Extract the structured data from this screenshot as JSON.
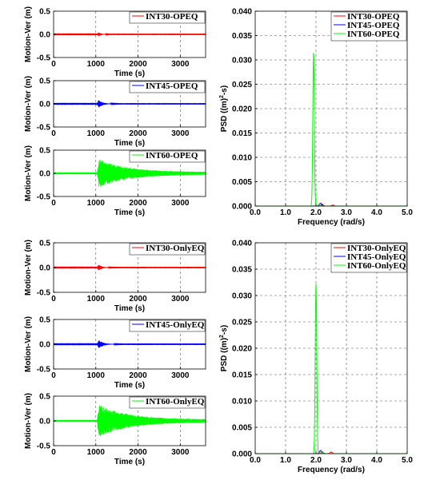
{
  "colors": {
    "int30": "#ff0000",
    "int45": "#0000ff",
    "int60": "#00ff00"
  },
  "chart_data": [
    {
      "id": "op30",
      "type": "line",
      "xlabel": "Time (s)",
      "ylabel": "Motion-Ver (m)",
      "xlim": [
        0,
        3600
      ],
      "ylim": [
        -0.5,
        0.5
      ],
      "xticks": [
        0,
        1000,
        2000,
        3000
      ],
      "yticks": [
        0.5,
        0,
        -0.5
      ],
      "grid": "dashed",
      "legend": "top-right",
      "series": [
        {
          "name": "INT30-OPEQ",
          "color": "#ff0000",
          "event_start": 1030,
          "peak": 0.07,
          "decay_end": 1300,
          "residual": 0.003
        }
      ]
    },
    {
      "id": "op45",
      "type": "line",
      "xlabel": "Time (s)",
      "ylabel": "Motion-Ver (m)",
      "xlim": [
        0,
        3600
      ],
      "ylim": [
        -0.5,
        0.5
      ],
      "xticks": [
        0,
        1000,
        2000,
        3000
      ],
      "yticks": [
        0.5,
        0,
        -0.5
      ],
      "grid": "dashed",
      "legend": "top-right",
      "series": [
        {
          "name": "INT45-OPEQ",
          "color": "#0000ff",
          "event_start": 1030,
          "peak": 0.12,
          "decay_end": 1400,
          "residual": 0.004
        }
      ]
    },
    {
      "id": "op60",
      "type": "line",
      "xlabel": "Time (s)",
      "ylabel": "Motion-Ver (m)",
      "xlim": [
        0,
        3600
      ],
      "ylim": [
        -0.5,
        0.5
      ],
      "xticks": [
        0,
        1000,
        2000,
        3000
      ],
      "yticks": [
        0.5,
        0,
        -0.5
      ],
      "grid": "dashed",
      "legend": "top-right",
      "series": [
        {
          "name": "INT60-OPEQ",
          "color": "#00ff00",
          "event_start": 1030,
          "peak": 0.28,
          "decay_end": 3600,
          "residual": 0.04
        }
      ]
    },
    {
      "id": "oppsd",
      "type": "line",
      "xlabel": "Frequency (rad/s)",
      "ylabel": "PSD ((m)^2-s)",
      "xlim": [
        0,
        5
      ],
      "ylim": [
        0,
        0.04
      ],
      "xticks": [
        0,
        1,
        2,
        3,
        4,
        5
      ],
      "yticks": [
        0.04,
        0.035,
        0.03,
        0.025,
        0.02,
        0.015,
        0.01,
        0.005,
        0
      ],
      "grid": "dashed",
      "legend": "top-right",
      "series": [
        {
          "name": "INT30-OPEQ",
          "color": "#ff0000",
          "peaks": [
            {
              "x": 2.2,
              "y": 0.0004,
              "w": 0.05
            },
            {
              "x": 2.55,
              "y": 0.0002,
              "w": 0.05
            }
          ]
        },
        {
          "name": "INT45-OPEQ",
          "color": "#0000ff",
          "peaks": [
            {
              "x": 2.15,
              "y": 0.0006,
              "w": 0.05
            }
          ]
        },
        {
          "name": "INT60-OPEQ",
          "color": "#00ff00",
          "peaks": [
            {
              "x": 1.92,
              "y": 0.0315,
              "w": 0.035
            },
            {
              "x": 2.1,
              "y": 0.0003,
              "w": 0.05
            }
          ]
        }
      ]
    },
    {
      "id": "eq30",
      "type": "line",
      "xlabel": "Time (s)",
      "ylabel": "Motion-Ver (m)",
      "xlim": [
        0,
        3600
      ],
      "ylim": [
        -0.5,
        0.5
      ],
      "xticks": [
        0,
        1000,
        2000,
        3000
      ],
      "yticks": [
        0.5,
        0,
        -0.5
      ],
      "grid": "dashed",
      "legend": "top-right",
      "series": [
        {
          "name": "INT30-OnlyEQ",
          "color": "#ff0000",
          "event_start": 1030,
          "peak": 0.09,
          "decay_end": 1350,
          "residual": 0.003
        }
      ]
    },
    {
      "id": "eq45",
      "type": "line",
      "xlabel": "Time (s)",
      "ylabel": "Motion-Ver (m)",
      "xlim": [
        0,
        3600
      ],
      "ylim": [
        -0.5,
        0.5
      ],
      "xticks": [
        0,
        1000,
        2000,
        3000
      ],
      "yticks": [
        0.5,
        0,
        -0.5
      ],
      "grid": "dashed",
      "legend": "top-right",
      "series": [
        {
          "name": "INT45-OnlyEQ",
          "color": "#0000ff",
          "event_start": 1030,
          "peak": 0.12,
          "decay_end": 1450,
          "residual": 0.004
        }
      ]
    },
    {
      "id": "eq60",
      "type": "line",
      "xlabel": "Time (s)",
      "ylabel": "Motion-Ver (m)",
      "xlim": [
        0,
        3600
      ],
      "ylim": [
        -0.5,
        0.5
      ],
      "xticks": [
        0,
        1000,
        2000,
        3000
      ],
      "yticks": [
        0.5,
        0,
        -0.5
      ],
      "grid": "dashed",
      "legend": "top-right",
      "series": [
        {
          "name": "INT60-OnlyEQ",
          "color": "#00ff00",
          "event_start": 1030,
          "peak": 0.3,
          "decay_end": 3600,
          "residual": 0.045
        }
      ]
    },
    {
      "id": "eqpsd",
      "type": "line",
      "xlabel": "Frequency (rad/s)",
      "ylabel": "PSD ((m)^2-s)",
      "xlim": [
        0,
        5
      ],
      "ylim": [
        0,
        0.04
      ],
      "xticks": [
        0,
        1,
        2,
        3,
        4,
        5
      ],
      "yticks": [
        0.04,
        0.035,
        0.03,
        0.025,
        0.02,
        0.015,
        0.01,
        0.005,
        0
      ],
      "grid": "dashed",
      "legend": "top-right",
      "series": [
        {
          "name": "INT30-OnlyEQ",
          "color": "#ff0000",
          "peaks": [
            {
              "x": 2.2,
              "y": 0.0004,
              "w": 0.05
            },
            {
              "x": 2.5,
              "y": 0.0003,
              "w": 0.05
            }
          ]
        },
        {
          "name": "INT45-OnlyEQ",
          "color": "#0000ff",
          "peaks": [
            {
              "x": 2.15,
              "y": 0.0006,
              "w": 0.05
            }
          ]
        },
        {
          "name": "INT60-OnlyEQ",
          "color": "#00ff00",
          "peaks": [
            {
              "x": 2.0,
              "y": 0.0322,
              "w": 0.035
            },
            {
              "x": 2.2,
              "y": 0.0003,
              "w": 0.05
            }
          ]
        }
      ]
    }
  ]
}
